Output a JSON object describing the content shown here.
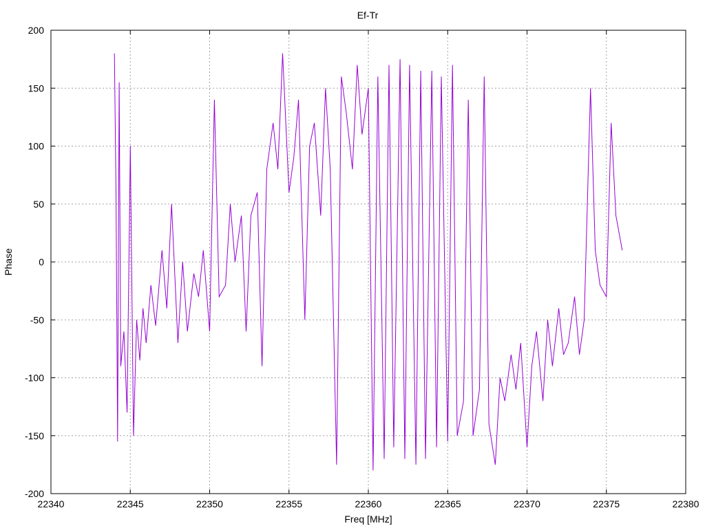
{
  "chart_data": {
    "type": "line",
    "title": "Ef-Tr",
    "xlabel": "Freq [MHz]",
    "ylabel": "Phase",
    "xlim": [
      22340,
      22380
    ],
    "ylim": [
      -200,
      200
    ],
    "xticks": [
      22340,
      22345,
      22350,
      22355,
      22360,
      22365,
      22370,
      22375,
      22380
    ],
    "yticks": [
      -200,
      -150,
      -100,
      -50,
      0,
      50,
      100,
      150,
      200
    ],
    "grid": true,
    "line_color": "#9400d3",
    "series": [
      {
        "x": [
          22344.0,
          22344.1,
          22344.2,
          22344.3,
          22344.4,
          22344.6,
          22344.8,
          22345.0,
          22345.2,
          22345.4,
          22345.6,
          22345.8,
          22346.0,
          22346.3,
          22346.6,
          22347.0,
          22347.3,
          22347.6,
          22348.0,
          22348.3,
          22348.6,
          22349.0,
          22349.3,
          22349.6,
          22350.0,
          22350.3,
          22350.6,
          22351.0,
          22351.3,
          22351.6,
          22352.0,
          22352.3,
          22352.6,
          22353.0,
          22353.3,
          22353.6,
          22354.0,
          22354.3,
          22354.6,
          22355.0,
          22355.3,
          22355.6,
          22356.0,
          22356.3,
          22356.6,
          22357.0,
          22357.3,
          22357.6,
          22358.0,
          22358.3,
          22358.6,
          22359.0,
          22359.3,
          22359.6,
          22360.0,
          22360.3,
          22360.6,
          22361.0,
          22361.3,
          22361.6,
          22362.0,
          22362.3,
          22362.6,
          22363.0,
          22363.3,
          22363.6,
          22364.0,
          22364.3,
          22364.6,
          22365.0,
          22365.3,
          22365.6,
          22366.0,
          22366.3,
          22366.6,
          22367.0,
          22367.3,
          22367.6,
          22368.0,
          22368.3,
          22368.6,
          22369.0,
          22369.3,
          22369.6,
          22370.0,
          22370.3,
          22370.6,
          22371.0,
          22371.3,
          22371.6,
          22372.0,
          22372.3,
          22372.6,
          22373.0,
          22373.3,
          22373.6,
          22374.0,
          22374.3,
          22374.6,
          22375.0,
          22375.3,
          22375.6,
          22376.0
        ],
        "y": [
          180,
          60,
          -155,
          155,
          -90,
          -60,
          -130,
          100,
          -150,
          -50,
          -85,
          -40,
          -70,
          -20,
          -55,
          10,
          -40,
          50,
          -70,
          0,
          -60,
          -10,
          -30,
          10,
          -60,
          140,
          -30,
          -20,
          50,
          0,
          40,
          -60,
          40,
          60,
          -90,
          80,
          120,
          80,
          180,
          60,
          90,
          140,
          -50,
          100,
          120,
          40,
          150,
          80,
          -175,
          160,
          130,
          80,
          170,
          110,
          150,
          -180,
          160,
          -170,
          170,
          -160,
          175,
          -170,
          170,
          -175,
          165,
          -170,
          165,
          -160,
          160,
          -155,
          170,
          -150,
          -120,
          140,
          -150,
          -110,
          160,
          -140,
          -175,
          -100,
          -120,
          -80,
          -110,
          -70,
          -160,
          -90,
          -60,
          -120,
          -50,
          -90,
          -40,
          -80,
          -70,
          -30,
          -80,
          -50,
          150,
          10,
          -20,
          -30,
          120,
          40,
          10
        ]
      }
    ]
  }
}
